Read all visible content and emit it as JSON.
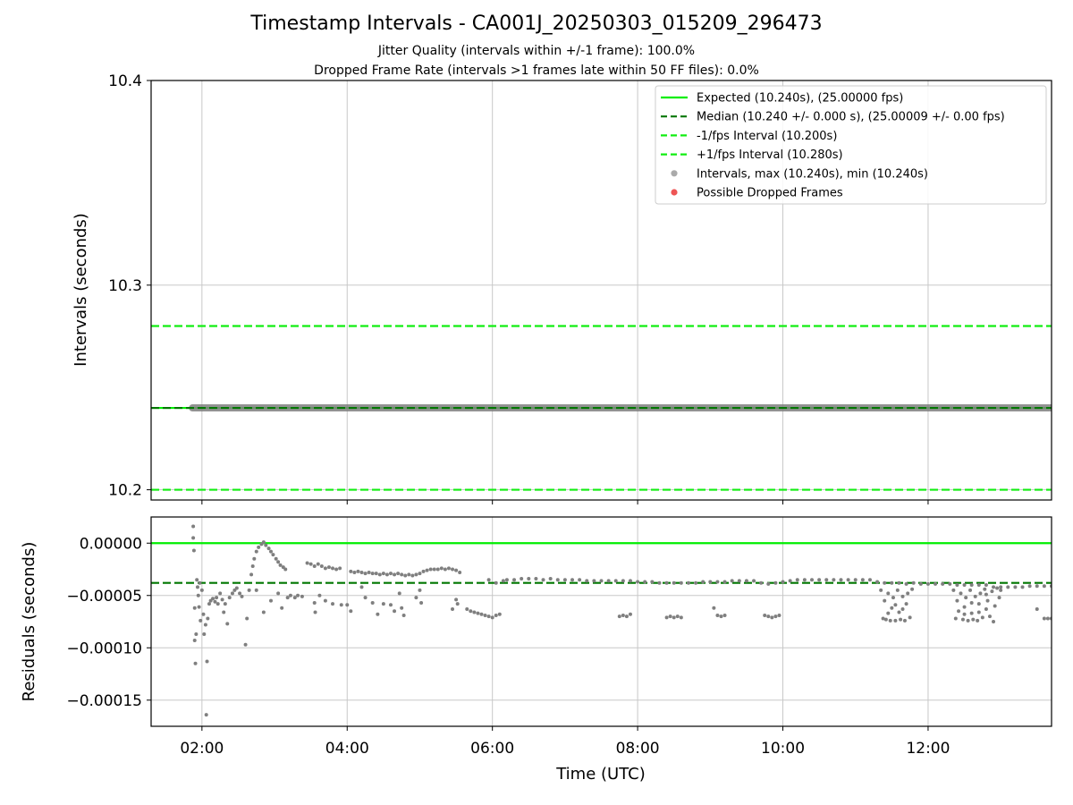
{
  "title": "Timestamp Intervals - CA001J_20250303_015209_296473",
  "subtitle_1": "Jitter Quality (intervals within +/-1 frame): 100.0%",
  "subtitle_2": "Dropped Frame Rate (intervals >1 frames late within 50 FF files): 0.0%",
  "colors": {
    "expected": "#00ee00",
    "median": "#007700",
    "bounds": "#11ee11",
    "intervals": "#7f7f7f",
    "dropped": "#ee5555",
    "grid": "#c8c8c8"
  },
  "chart_data": [
    {
      "type": "line",
      "panel": "top",
      "ylabel": "Intervals (seconds)",
      "ylim": [
        10.195,
        10.4
      ],
      "yticks": [
        "10.2",
        "10.3",
        "10.4"
      ],
      "ytick_values": [
        10.2,
        10.3,
        10.4
      ],
      "xlim_hours": [
        1.3,
        13.7
      ],
      "grid": true,
      "legend_position": "top-right",
      "legend": [
        {
          "label": "Expected (10.240s), (25.00000 fps)",
          "style": "solid",
          "color": "#00ee00"
        },
        {
          "label": "Median (10.240 +/- 0.000 s), (25.00009 +/- 0.00 fps)",
          "style": "dashed",
          "color": "#007700"
        },
        {
          "label": "-1/fps Interval (10.200s)",
          "style": "dashed",
          "color": "#11ee11"
        },
        {
          "label": "+1/fps Interval (10.280s)",
          "style": "dashed",
          "color": "#11ee11"
        },
        {
          "label": "Intervals, max (10.240s), min (10.240s)",
          "style": "marker",
          "color": "#aaaaaa"
        },
        {
          "label": "Possible Dropped Frames",
          "style": "marker",
          "color": "#ee5555"
        }
      ],
      "lines": {
        "expected": 10.24,
        "median": 10.24,
        "minus_1fps": 10.2,
        "plus_1fps": 10.28
      },
      "series": [
        {
          "kind": "intervals",
          "x_range_hours": [
            1.87,
            13.7
          ],
          "y": 10.24
        }
      ],
      "dropped_frames": []
    },
    {
      "type": "scatter",
      "panel": "bottom",
      "xlabel": "Time (UTC)",
      "ylabel": "Residuals (seconds)",
      "ylim": [
        -0.000175,
        2.5e-05
      ],
      "yticks": [
        "0.00000",
        "−0.00005",
        "−0.00010",
        "−0.00015"
      ],
      "ytick_values": [
        0,
        -5e-05,
        -0.0001,
        -0.00015
      ],
      "xlim_hours": [
        1.3,
        13.7
      ],
      "xticks": [
        "02:00",
        "04:00",
        "06:00",
        "08:00",
        "10:00",
        "12:00"
      ],
      "xtick_values": [
        2,
        4,
        6,
        8,
        10,
        12
      ],
      "grid": true,
      "lines": {
        "expected": 0,
        "median": -3.8e-05
      },
      "points": [
        [
          1.88,
          1.6e-05
        ],
        [
          1.88,
          5e-06
        ],
        [
          1.89,
          -7e-06
        ],
        [
          1.9,
          -6.2e-05
        ],
        [
          1.9,
          -9.3e-05
        ],
        [
          1.91,
          -0.000115
        ],
        [
          1.92,
          -8.7e-05
        ],
        [
          1.93,
          -3.5e-05
        ],
        [
          1.94,
          -4.2e-05
        ],
        [
          1.95,
          -5e-05
        ],
        [
          1.96,
          -6.1e-05
        ],
        [
          1.97,
          -3.8e-05
        ],
        [
          1.98,
          -7.4e-05
        ],
        [
          2.0,
          -4.5e-05
        ],
        [
          2.02,
          -6.8e-05
        ],
        [
          2.03,
          -8.7e-05
        ],
        [
          2.05,
          -7.8e-05
        ],
        [
          2.06,
          -0.000164
        ],
        [
          2.07,
          -0.000113
        ],
        [
          2.08,
          -7.2e-05
        ],
        [
          2.1,
          -5.8e-05
        ],
        [
          2.12,
          -5.5e-05
        ],
        [
          2.15,
          -5.3e-05
        ],
        [
          2.18,
          -5.6e-05
        ],
        [
          2.2,
          -5.2e-05
        ],
        [
          2.22,
          -5.8e-05
        ],
        [
          2.25,
          -4.8e-05
        ],
        [
          2.28,
          -5.4e-05
        ],
        [
          2.3,
          -6.6e-05
        ],
        [
          2.32,
          -5.8e-05
        ],
        [
          2.35,
          -7.7e-05
        ],
        [
          2.38,
          -5.2e-05
        ],
        [
          2.42,
          -4.8e-05
        ],
        [
          2.45,
          -4.5e-05
        ],
        [
          2.48,
          -4.3e-05
        ],
        [
          2.52,
          -4.8e-05
        ],
        [
          2.55,
          -5.1e-05
        ],
        [
          2.6,
          -9.7e-05
        ],
        [
          2.62,
          -7.2e-05
        ],
        [
          2.65,
          -4.5e-05
        ],
        [
          2.68,
          -3e-05
        ],
        [
          2.7,
          -2.2e-05
        ],
        [
          2.72,
          -1.5e-05
        ],
        [
          2.75,
          -8e-06
        ],
        [
          2.78,
          -4e-06
        ],
        [
          2.82,
          -1e-06
        ],
        [
          2.85,
          1e-06
        ],
        [
          2.88,
          -2e-06
        ],
        [
          2.92,
          -5e-06
        ],
        [
          2.95,
          -8e-06
        ],
        [
          2.98,
          -1.1e-05
        ],
        [
          3.02,
          -1.5e-05
        ],
        [
          3.05,
          -1.8e-05
        ],
        [
          3.08,
          -2.1e-05
        ],
        [
          3.12,
          -2.3e-05
        ],
        [
          3.15,
          -2.5e-05
        ],
        [
          2.75,
          -4.5e-05
        ],
        [
          2.85,
          -6.6e-05
        ],
        [
          2.95,
          -5.5e-05
        ],
        [
          3.05,
          -4.8e-05
        ],
        [
          3.1,
          -6.2e-05
        ],
        [
          3.18,
          -5.2e-05
        ],
        [
          3.22,
          -5e-05
        ],
        [
          3.28,
          -5.2e-05
        ],
        [
          3.32,
          -5e-05
        ],
        [
          3.38,
          -5.1e-05
        ],
        [
          3.45,
          -1.9e-05
        ],
        [
          3.5,
          -2e-05
        ],
        [
          3.55,
          -2.2e-05
        ],
        [
          3.6,
          -2e-05
        ],
        [
          3.65,
          -2.2e-05
        ],
        [
          3.7,
          -2.4e-05
        ],
        [
          3.75,
          -2.3e-05
        ],
        [
          3.8,
          -2.4e-05
        ],
        [
          3.85,
          -2.5e-05
        ],
        [
          3.9,
          -2.4e-05
        ],
        [
          3.55,
          -5.7e-05
        ],
        [
          3.56,
          -6.6e-05
        ],
        [
          3.62,
          -5e-05
        ],
        [
          3.7,
          -5.5e-05
        ],
        [
          3.8,
          -5.8e-05
        ],
        [
          3.92,
          -5.9e-05
        ],
        [
          4.05,
          -2.7e-05
        ],
        [
          4.1,
          -2.8e-05
        ],
        [
          4.15,
          -2.7e-05
        ],
        [
          4.2,
          -2.8e-05
        ],
        [
          4.25,
          -2.9e-05
        ],
        [
          4.3,
          -2.8e-05
        ],
        [
          4.35,
          -2.9e-05
        ],
        [
          4.4,
          -2.9e-05
        ],
        [
          4.45,
          -3e-05
        ],
        [
          4.5,
          -2.9e-05
        ],
        [
          4.55,
          -3e-05
        ],
        [
          4.6,
          -2.9e-05
        ],
        [
          4.65,
          -3e-05
        ],
        [
          4.7,
          -2.9e-05
        ],
        [
          4.75,
          -3e-05
        ],
        [
          4.8,
          -3.1e-05
        ],
        [
          4.85,
          -3e-05
        ],
        [
          4.9,
          -3.1e-05
        ],
        [
          4.95,
          -3e-05
        ],
        [
          5.0,
          -2.9e-05
        ],
        [
          5.05,
          -2.7e-05
        ],
        [
          5.1,
          -2.6e-05
        ],
        [
          5.15,
          -2.5e-05
        ],
        [
          5.2,
          -2.5e-05
        ],
        [
          5.25,
          -2.5e-05
        ],
        [
          5.3,
          -2.4e-05
        ],
        [
          5.35,
          -2.5e-05
        ],
        [
          5.4,
          -2.4e-05
        ],
        [
          5.45,
          -2.5e-05
        ],
        [
          5.5,
          -2.6e-05
        ],
        [
          5.55,
          -2.8e-05
        ],
        [
          4.0,
          -5.9e-05
        ],
        [
          4.05,
          -6.5e-05
        ],
        [
          4.2,
          -4.2e-05
        ],
        [
          4.25,
          -5.2e-05
        ],
        [
          4.35,
          -5.7e-05
        ],
        [
          4.42,
          -6.8e-05
        ],
        [
          4.5,
          -5.8e-05
        ],
        [
          4.6,
          -5.9e-05
        ],
        [
          4.65,
          -6.5e-05
        ],
        [
          4.75,
          -6.2e-05
        ],
        [
          4.72,
          -4.8e-05
        ],
        [
          4.78,
          -6.9e-05
        ],
        [
          4.95,
          -5.2e-05
        ],
        [
          5.0,
          -4.5e-05
        ],
        [
          5.02,
          -5.7e-05
        ],
        [
          5.45,
          -6.3e-05
        ],
        [
          5.5,
          -5.4e-05
        ],
        [
          5.52,
          -5.8e-05
        ],
        [
          5.65,
          -6.3e-05
        ],
        [
          5.7,
          -6.5e-05
        ],
        [
          5.75,
          -6.6e-05
        ],
        [
          5.8,
          -6.7e-05
        ],
        [
          5.85,
          -6.8e-05
        ],
        [
          5.9,
          -6.9e-05
        ],
        [
          5.95,
          -7e-05
        ],
        [
          6.0,
          -7.1e-05
        ],
        [
          6.05,
          -6.9e-05
        ],
        [
          6.1,
          -6.8e-05
        ],
        [
          5.95,
          -3.5e-05
        ],
        [
          6.05,
          -3.8e-05
        ],
        [
          6.15,
          -3.6e-05
        ],
        [
          6.2,
          -3.5e-05
        ],
        [
          6.3,
          -3.5e-05
        ],
        [
          6.4,
          -3.4e-05
        ],
        [
          6.5,
          -3.4e-05
        ],
        [
          6.6,
          -3.4e-05
        ],
        [
          6.7,
          -3.5e-05
        ],
        [
          6.8,
          -3.4e-05
        ],
        [
          6.9,
          -3.5e-05
        ],
        [
          7.0,
          -3.5e-05
        ],
        [
          7.1,
          -3.5e-05
        ],
        [
          7.2,
          -3.5e-05
        ],
        [
          7.3,
          -3.6e-05
        ],
        [
          7.4,
          -3.6e-05
        ],
        [
          7.5,
          -3.6e-05
        ],
        [
          7.6,
          -3.6e-05
        ],
        [
          7.7,
          -3.6e-05
        ],
        [
          7.8,
          -3.6e-05
        ],
        [
          7.9,
          -3.6e-05
        ],
        [
          8.0,
          -3.7e-05
        ],
        [
          8.1,
          -3.7e-05
        ],
        [
          8.2,
          -3.7e-05
        ],
        [
          8.3,
          -3.8e-05
        ],
        [
          8.4,
          -3.8e-05
        ],
        [
          8.5,
          -3.8e-05
        ],
        [
          8.6,
          -3.8e-05
        ],
        [
          8.7,
          -3.8e-05
        ],
        [
          8.8,
          -3.8e-05
        ],
        [
          8.9,
          -3.7e-05
        ],
        [
          9.0,
          -3.7e-05
        ],
        [
          9.1,
          -3.7e-05
        ],
        [
          9.2,
          -3.7e-05
        ],
        [
          9.3,
          -3.6e-05
        ],
        [
          9.4,
          -3.6e-05
        ],
        [
          9.5,
          -3.6e-05
        ],
        [
          9.6,
          -3.6e-05
        ],
        [
          9.7,
          -3.8e-05
        ],
        [
          9.8,
          -3.9e-05
        ],
        [
          9.9,
          -3.8e-05
        ],
        [
          10.0,
          -3.7e-05
        ],
        [
          10.1,
          -3.6e-05
        ],
        [
          10.2,
          -3.5e-05
        ],
        [
          10.3,
          -3.5e-05
        ],
        [
          10.4,
          -3.5e-05
        ],
        [
          10.5,
          -3.5e-05
        ],
        [
          10.6,
          -3.5e-05
        ],
        [
          10.7,
          -3.5e-05
        ],
        [
          10.8,
          -3.5e-05
        ],
        [
          10.9,
          -3.5e-05
        ],
        [
          11.0,
          -3.5e-05
        ],
        [
          11.1,
          -3.5e-05
        ],
        [
          11.2,
          -3.5e-05
        ],
        [
          11.3,
          -3.7e-05
        ],
        [
          11.4,
          -3.8e-05
        ],
        [
          11.5,
          -3.8e-05
        ],
        [
          11.6,
          -3.8e-05
        ],
        [
          11.7,
          -3.9e-05
        ],
        [
          11.8,
          -3.8e-05
        ],
        [
          11.9,
          -3.9e-05
        ],
        [
          12.0,
          -3.9e-05
        ],
        [
          12.1,
          -3.9e-05
        ],
        [
          12.2,
          -3.9e-05
        ],
        [
          12.3,
          -3.9e-05
        ],
        [
          12.4,
          -4e-05
        ],
        [
          12.5,
          -4e-05
        ],
        [
          12.6,
          -4e-05
        ],
        [
          12.7,
          -4e-05
        ],
        [
          12.8,
          -4e-05
        ],
        [
          12.9,
          -4.2e-05
        ],
        [
          13.0,
          -4.2e-05
        ],
        [
          13.1,
          -4.2e-05
        ],
        [
          13.2,
          -4.2e-05
        ],
        [
          13.3,
          -4.2e-05
        ],
        [
          13.4,
          -4.1e-05
        ],
        [
          13.5,
          -4.1e-05
        ],
        [
          13.6,
          -4.1e-05
        ],
        [
          13.7,
          -4.1e-05
        ],
        [
          7.75,
          -7e-05
        ],
        [
          7.8,
          -6.9e-05
        ],
        [
          7.85,
          -7e-05
        ],
        [
          7.9,
          -6.8e-05
        ],
        [
          8.4,
          -7.1e-05
        ],
        [
          8.45,
          -7e-05
        ],
        [
          8.5,
          -7.1e-05
        ],
        [
          8.55,
          -7e-05
        ],
        [
          8.6,
          -7.1e-05
        ],
        [
          9.05,
          -6.2e-05
        ],
        [
          9.1,
          -6.9e-05
        ],
        [
          9.15,
          -7e-05
        ],
        [
          9.2,
          -6.9e-05
        ],
        [
          9.75,
          -6.9e-05
        ],
        [
          9.8,
          -7e-05
        ],
        [
          9.85,
          -7.1e-05
        ],
        [
          9.9,
          -7e-05
        ],
        [
          9.95,
          -6.9e-05
        ],
        [
          11.35,
          -4.5e-05
        ],
        [
          11.38,
          -7.2e-05
        ],
        [
          11.4,
          -5.5e-05
        ],
        [
          11.42,
          -7.3e-05
        ],
        [
          11.45,
          -4.8e-05
        ],
        [
          11.48,
          -7.4e-05
        ],
        [
          11.5,
          -6.2e-05
        ],
        [
          11.52,
          -5.2e-05
        ],
        [
          11.55,
          -7.4e-05
        ],
        [
          11.58,
          -4.5e-05
        ],
        [
          11.6,
          -6.6e-05
        ],
        [
          11.62,
          -7.3e-05
        ],
        [
          11.65,
          -5.1e-05
        ],
        [
          11.68,
          -7.4e-05
        ],
        [
          11.7,
          -5.8e-05
        ],
        [
          11.72,
          -4.8e-05
        ],
        [
          11.75,
          -7.1e-05
        ],
        [
          11.78,
          -4.4e-05
        ],
        [
          11.45,
          -6.7e-05
        ],
        [
          11.55,
          -5.9e-05
        ],
        [
          11.65,
          -6.3e-05
        ],
        [
          12.35,
          -4.5e-05
        ],
        [
          12.38,
          -7.2e-05
        ],
        [
          12.4,
          -5.5e-05
        ],
        [
          12.42,
          -6.5e-05
        ],
        [
          12.45,
          -4.8e-05
        ],
        [
          12.48,
          -7.3e-05
        ],
        [
          12.5,
          -6.1e-05
        ],
        [
          12.52,
          -5.2e-05
        ],
        [
          12.55,
          -7.4e-05
        ],
        [
          12.58,
          -4.5e-05
        ],
        [
          12.6,
          -6.7e-05
        ],
        [
          12.62,
          -7.3e-05
        ],
        [
          12.65,
          -5.1e-05
        ],
        [
          12.68,
          -7.4e-05
        ],
        [
          12.7,
          -5.8e-05
        ],
        [
          12.72,
          -4.8e-05
        ],
        [
          12.75,
          -7.1e-05
        ],
        [
          12.78,
          -4.4e-05
        ],
        [
          12.8,
          -6.3e-05
        ],
        [
          12.82,
          -5.5e-05
        ],
        [
          12.85,
          -7e-05
        ],
        [
          12.88,
          -4.6e-05
        ],
        [
          12.9,
          -7.5e-05
        ],
        [
          12.92,
          -6e-05
        ],
        [
          12.95,
          -4.3e-05
        ],
        [
          12.98,
          -5.2e-05
        ],
        [
          13.0,
          -4.5e-05
        ],
        [
          12.5,
          -6.8e-05
        ],
        [
          12.6,
          -5.7e-05
        ],
        [
          12.7,
          -6.6e-05
        ],
        [
          12.8,
          -4.9e-05
        ],
        [
          13.5,
          -6.3e-05
        ],
        [
          13.6,
          -7.2e-05
        ],
        [
          13.65,
          -7.2e-05
        ],
        [
          13.7,
          -7.2e-05
        ]
      ]
    }
  ]
}
